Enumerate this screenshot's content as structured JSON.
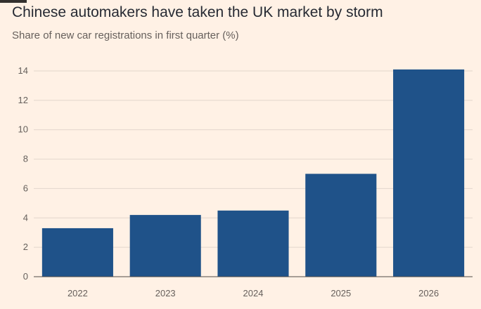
{
  "header": {
    "title": "Chinese automakers have taken the UK market by storm",
    "subtitle": "Share of new car registrations in first quarter (%)"
  },
  "colors": {
    "background": "#fff1e5",
    "bar": "#1f5289",
    "gridline": "#e2d6cc",
    "baseline": "#4f4a46",
    "tick_text": "#66605c"
  },
  "chart_data": {
    "type": "bar",
    "title": "Chinese automakers have taken the UK market by storm",
    "subtitle": "Share of new car registrations in first quarter (%)",
    "categories": [
      "2022",
      "2023",
      "2024",
      "2025",
      "2026"
    ],
    "values": [
      3.3,
      4.2,
      4.5,
      7.0,
      14.1
    ],
    "ylim": [
      0,
      14
    ],
    "yticks": [
      "0",
      "2",
      "4",
      "6",
      "8",
      "10",
      "12",
      "14"
    ],
    "grid": true
  }
}
